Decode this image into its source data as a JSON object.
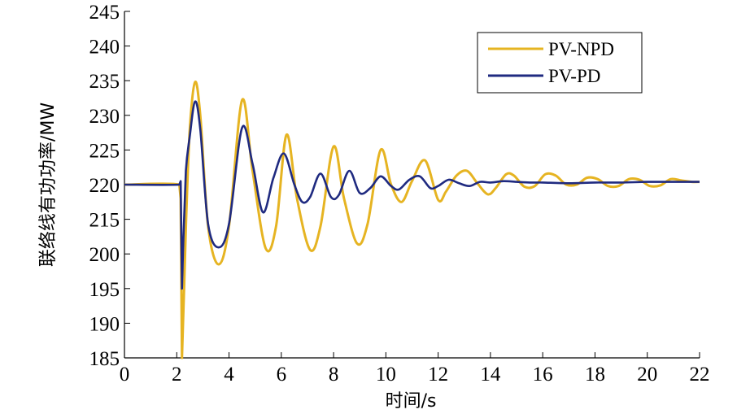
{
  "chart_data": {
    "type": "line",
    "title": "",
    "xlabel": "时间/s",
    "ylabel": "联络线有功功率/MW",
    "xlim": [
      0,
      22
    ],
    "ylim": [
      185,
      245
    ],
    "xticks": [
      0,
      2,
      4,
      6,
      8,
      10,
      12,
      14,
      16,
      18,
      20,
      22
    ],
    "yticks": [
      185,
      190,
      195,
      200,
      215,
      220,
      225,
      230,
      235,
      240,
      245
    ],
    "ytick_labels": [
      "185",
      "190",
      "195",
      "200",
      "215",
      "220",
      "225",
      "230",
      "235",
      "240",
      "245"
    ],
    "grid": false,
    "legend_position": "top-right",
    "series": [
      {
        "name": "PV-NPD",
        "color": "#E6B422",
        "x": [
          0,
          2.1,
          2.15,
          2.2,
          2.28,
          2.36,
          2.5,
          2.7,
          2.9,
          3.2,
          3.6,
          4.0,
          4.5,
          4.9,
          5.4,
          5.8,
          6.2,
          6.6,
          7.1,
          7.5,
          8.0,
          8.4,
          8.9,
          9.3,
          9.8,
          10.2,
          10.6,
          11.0,
          11.5,
          12.0,
          12.3,
          12.7,
          13.1,
          13.5,
          13.9,
          14.2,
          14.6,
          14.9,
          15.3,
          15.7,
          16.1,
          16.5,
          16.9,
          17.3,
          17.7,
          18.1,
          18.5,
          18.9,
          19.3,
          19.7,
          20.1,
          20.5,
          20.9,
          21.3,
          21.7,
          22.0
        ],
        "y": [
          220,
          220,
          218,
          185,
          195,
          215,
          228,
          234.8,
          230,
          212,
          198.5,
          212,
          232.2,
          222,
          202.5,
          212,
          227.2,
          218,
          201.8,
          212,
          225.5,
          218,
          204.5,
          213,
          225,
          220,
          217.5,
          220.5,
          223.5,
          217.8,
          219,
          221.3,
          222,
          220.2,
          218.6,
          219.5,
          221.5,
          221.3,
          219.7,
          219.8,
          221.5,
          221.3,
          220,
          220,
          221,
          220.8,
          219.8,
          219.8,
          220.8,
          220.7,
          219.8,
          219.9,
          220.8,
          220.6,
          220.4,
          220.4
        ]
      },
      {
        "name": "PV-PD",
        "color": "#1F2A80",
        "x": [
          0,
          2.1,
          2.15,
          2.2,
          2.25,
          2.35,
          2.5,
          2.7,
          2.9,
          3.2,
          3.6,
          4.0,
          4.5,
          4.9,
          5.3,
          5.7,
          6.1,
          6.5,
          6.8,
          7.1,
          7.5,
          7.9,
          8.2,
          8.6,
          9.0,
          9.4,
          9.8,
          10.2,
          10.5,
          10.9,
          11.3,
          11.7,
          12.0,
          12.4,
          12.8,
          13.2,
          13.6,
          14.0,
          14.5,
          15.0,
          15.5,
          16.0,
          17.0,
          18.0,
          19.0,
          20.0,
          21.0,
          22.0
        ],
        "y": [
          220,
          220,
          220.5,
          195,
          205,
          222,
          227,
          232,
          228,
          213,
          202.8,
          213,
          228.2,
          223,
          216,
          221,
          224.5,
          220,
          217.5,
          218.2,
          221.6,
          218.2,
          218.5,
          222,
          218.8,
          219.5,
          221.2,
          219.8,
          219.3,
          220.7,
          221.2,
          219.5,
          219.8,
          220.7,
          220.2,
          219.8,
          220.4,
          220.3,
          220.5,
          220.4,
          220.3,
          220.3,
          220.2,
          220.3,
          220.3,
          220.4,
          220.4,
          220.4
        ]
      }
    ]
  }
}
